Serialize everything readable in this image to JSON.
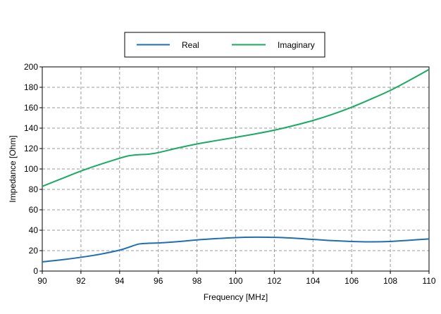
{
  "chart_data": {
    "type": "line",
    "xlabel": "Frequency [MHz]",
    "ylabel": "Impedance [Ohm]",
    "xlim": [
      90,
      110
    ],
    "ylim": [
      0,
      200
    ],
    "xticks": [
      90,
      92,
      94,
      96,
      98,
      100,
      102,
      104,
      106,
      108,
      110
    ],
    "yticks": [
      0,
      20,
      40,
      60,
      80,
      100,
      120,
      140,
      160,
      180,
      200
    ],
    "grid": true,
    "legend_position": "top-center",
    "series": [
      {
        "name": "Real",
        "color": "#1f6fb0",
        "x": [
          90,
          91,
          92,
          93,
          94,
          94.5,
          95,
          95.5,
          96,
          97,
          98,
          99,
          100,
          101,
          102,
          103,
          104,
          105,
          106,
          107,
          108,
          109,
          110
        ],
        "y": [
          9,
          11,
          13.5,
          16.5,
          20.5,
          23.5,
          26.5,
          27.2,
          27.5,
          28.8,
          30.5,
          31.8,
          32.8,
          33.2,
          33,
          32.2,
          31,
          29.8,
          29,
          28.6,
          29,
          30.2,
          31.5
        ]
      },
      {
        "name": "Imaginary",
        "color": "#1aaa62",
        "x": [
          90,
          91,
          92,
          93,
          94,
          94.5,
          95,
          95.5,
          96,
          97,
          98,
          99,
          100,
          101,
          102,
          103,
          104,
          105,
          106,
          107,
          108,
          109,
          110
        ],
        "y": [
          83,
          90.5,
          98,
          104.5,
          110.5,
          113,
          114,
          114.5,
          116,
          120.5,
          124.5,
          127.8,
          131,
          134.3,
          138,
          142.5,
          147.5,
          153.5,
          160.5,
          168.5,
          177,
          187,
          197.5
        ]
      }
    ]
  }
}
